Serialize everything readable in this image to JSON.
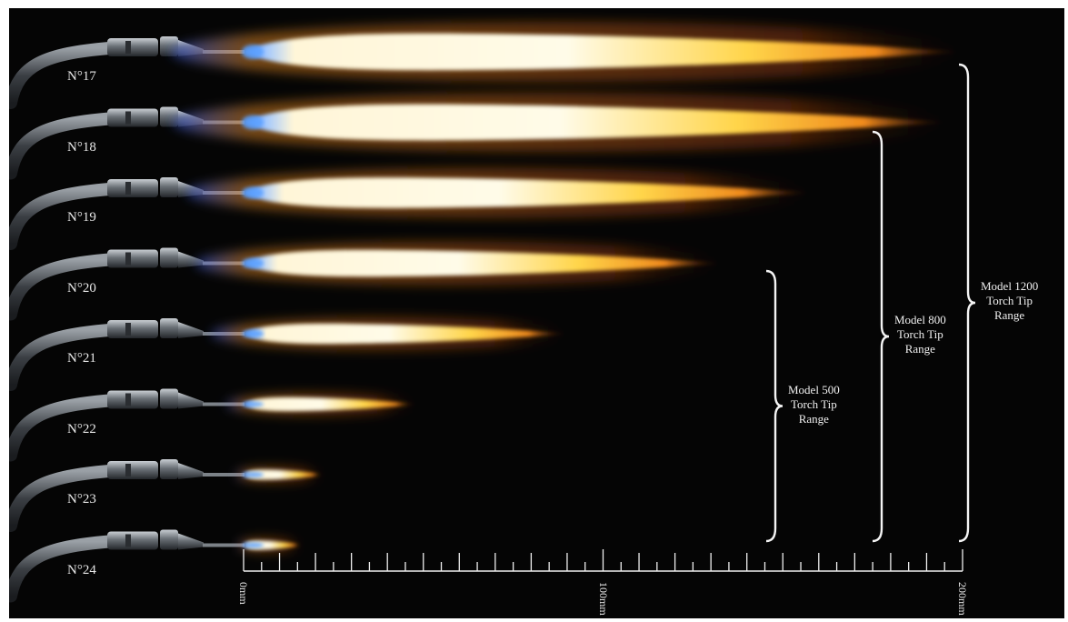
{
  "tips": [
    {
      "label": "N°17",
      "flame_length_mm": 200
    },
    {
      "label": "N°18",
      "flame_length_mm": 196
    },
    {
      "label": "N°19",
      "flame_length_mm": 158
    },
    {
      "label": "N°20",
      "flame_length_mm": 133
    },
    {
      "label": "N°21",
      "flame_length_mm": 90
    },
    {
      "label": "N°22",
      "flame_length_mm": 48
    },
    {
      "label": "N°23",
      "flame_length_mm": 22
    },
    {
      "label": "N°24",
      "flame_length_mm": 16
    }
  ],
  "ranges": [
    {
      "lines": [
        "Model 500",
        "Torch Tip",
        "Range"
      ],
      "from_tip": "N°20",
      "to_tip": "N°24"
    },
    {
      "lines": [
        "Model 800",
        "Torch Tip",
        "Range"
      ],
      "from_tip": "N°18",
      "to_tip": "N°24"
    },
    {
      "lines": [
        "Model 1200",
        "Torch Tip",
        "Range"
      ],
      "from_tip": "N°17",
      "to_tip": "N°24"
    }
  ],
  "ruler": {
    "labels": [
      "0mm",
      "100mm",
      "200mm"
    ],
    "min_mm": 0,
    "max_mm": 200,
    "minor_step_mm": 5,
    "major_step_mm": 10
  },
  "colors": {
    "background": "#050505",
    "flame_core": "#fffbe8",
    "flame_mid": "#ffc83a",
    "flame_outer": "#e0661a",
    "flame_cone": "#3d8eff",
    "text": "#e8e8e8"
  }
}
